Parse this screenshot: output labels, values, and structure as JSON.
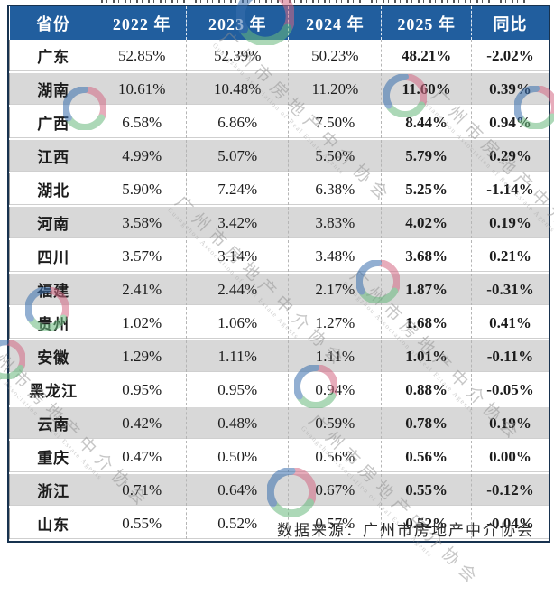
{
  "chart_data": {
    "type": "table",
    "columns": [
      "省份",
      "2022 年",
      "2023 年",
      "2024 年",
      "2025 年",
      "同比"
    ],
    "unit": "percent",
    "categories": [
      "广东",
      "湖南",
      "广西",
      "江西",
      "湖北",
      "河南",
      "四川",
      "福建",
      "贵州",
      "安徽",
      "黑龙江",
      "云南",
      "重庆",
      "浙江",
      "山东"
    ],
    "series": [
      {
        "name": "2022 年",
        "values": [
          52.85,
          10.61,
          6.58,
          4.99,
          5.9,
          3.58,
          3.57,
          2.41,
          1.02,
          1.29,
          0.95,
          0.42,
          0.47,
          0.71,
          0.55
        ]
      },
      {
        "name": "2023 年",
        "values": [
          52.39,
          10.48,
          6.86,
          5.07,
          7.24,
          3.42,
          3.14,
          2.44,
          1.06,
          1.11,
          0.95,
          0.48,
          0.5,
          0.64,
          0.52
        ]
      },
      {
        "name": "2024 年",
        "values": [
          50.23,
          11.2,
          7.5,
          5.5,
          6.38,
          3.83,
          3.48,
          2.17,
          1.27,
          1.11,
          0.94,
          0.59,
          0.56,
          0.67,
          0.57
        ]
      },
      {
        "name": "2025 年",
        "values": [
          48.21,
          11.6,
          8.44,
          5.79,
          5.25,
          4.02,
          3.68,
          1.87,
          1.68,
          1.01,
          0.88,
          0.78,
          0.56,
          0.55,
          0.52
        ]
      },
      {
        "name": "同比",
        "values": [
          -2.02,
          0.39,
          0.94,
          0.29,
          -1.14,
          0.19,
          0.21,
          -0.31,
          0.41,
          -0.11,
          -0.05,
          0.19,
          0.0,
          -0.12,
          -0.04
        ]
      }
    ],
    "rows": [
      {
        "province": "广东",
        "y2022": "52.85%",
        "y2023": "52.39%",
        "y2024": "50.23%",
        "y2025": "48.21%",
        "yoy": "-2.02%"
      },
      {
        "province": "湖南",
        "y2022": "10.61%",
        "y2023": "10.48%",
        "y2024": "11.20%",
        "y2025": "11.60%",
        "yoy": "0.39%"
      },
      {
        "province": "广西",
        "y2022": "6.58%",
        "y2023": "6.86%",
        "y2024": "7.50%",
        "y2025": "8.44%",
        "yoy": "0.94%"
      },
      {
        "province": "江西",
        "y2022": "4.99%",
        "y2023": "5.07%",
        "y2024": "5.50%",
        "y2025": "5.79%",
        "yoy": "0.29%"
      },
      {
        "province": "湖北",
        "y2022": "5.90%",
        "y2023": "7.24%",
        "y2024": "6.38%",
        "y2025": "5.25%",
        "yoy": "-1.14%"
      },
      {
        "province": "河南",
        "y2022": "3.58%",
        "y2023": "3.42%",
        "y2024": "3.83%",
        "y2025": "4.02%",
        "yoy": "0.19%"
      },
      {
        "province": "四川",
        "y2022": "3.57%",
        "y2023": "3.14%",
        "y2024": "3.48%",
        "y2025": "3.68%",
        "yoy": "0.21%"
      },
      {
        "province": "福建",
        "y2022": "2.41%",
        "y2023": "2.44%",
        "y2024": "2.17%",
        "y2025": "1.87%",
        "yoy": "-0.31%"
      },
      {
        "province": "贵州",
        "y2022": "1.02%",
        "y2023": "1.06%",
        "y2024": "1.27%",
        "y2025": "1.68%",
        "yoy": "0.41%"
      },
      {
        "province": "安徽",
        "y2022": "1.29%",
        "y2023": "1.11%",
        "y2024": "1.11%",
        "y2025": "1.01%",
        "yoy": "-0.11%"
      },
      {
        "province": "黑龙江",
        "y2022": "0.95%",
        "y2023": "0.95%",
        "y2024": "0.94%",
        "y2025": "0.88%",
        "yoy": "-0.05%"
      },
      {
        "province": "云南",
        "y2022": "0.42%",
        "y2023": "0.48%",
        "y2024": "0.59%",
        "y2025": "0.78%",
        "yoy": "0.19%"
      },
      {
        "province": "重庆",
        "y2022": "0.47%",
        "y2023": "0.50%",
        "y2024": "0.56%",
        "y2025": "0.56%",
        "yoy": "0.00%"
      },
      {
        "province": "浙江",
        "y2022": "0.71%",
        "y2023": "0.64%",
        "y2024": "0.67%",
        "y2025": "0.55%",
        "yoy": "-0.12%"
      },
      {
        "province": "山东",
        "y2022": "0.55%",
        "y2023": "0.52%",
        "y2024": "0.57%",
        "y2025": "0.52%",
        "yoy": "-0.04%"
      }
    ]
  },
  "footer": {
    "source": "数据来源：广州市房地产中介协会"
  },
  "watermark": {
    "cn": "广州市房地产中介协会",
    "en": "Guangzhou Association of Real Estate Agents"
  },
  "colors": {
    "header_bg": "#215e9e",
    "header_text": "#ffffff",
    "row_alt_bg": "#d8d8d8",
    "outer_border": "#17324f",
    "logo_blue": "#3a6fae",
    "logo_green": "#69b97e",
    "logo_red": "#d46a85"
  }
}
